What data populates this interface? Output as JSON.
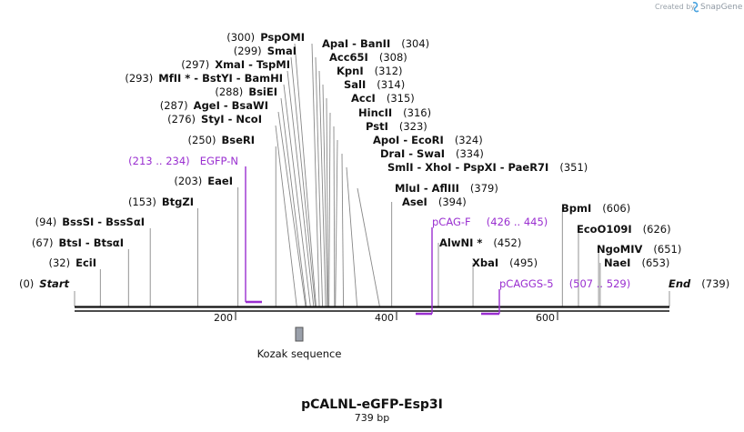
{
  "credit": {
    "prefix": "Created by",
    "brand": "SnapGene"
  },
  "plasmid": {
    "name": "pCALNL-eGFP-Esp3I",
    "length_label": "739 bp"
  },
  "backbone": {
    "length": 739,
    "ticks": [
      "200",
      "400",
      "600"
    ]
  },
  "features": [
    {
      "label": "Kozak sequence",
      "color": "#9aa0aa"
    }
  ],
  "enzymes": [
    {
      "name": "Start",
      "pos": "(0)",
      "site": 0,
      "italic": true
    },
    {
      "name": "EciI",
      "pos": "(32)",
      "site": 32
    },
    {
      "name": "BtsI - BtsαI",
      "pos": "(67)",
      "site": 67
    },
    {
      "name": "BssSI - BssSαI",
      "pos": "(94)",
      "site": 94
    },
    {
      "name": "BtgZI",
      "pos": "(153)",
      "site": 153
    },
    {
      "name": "EaeI",
      "pos": "(203)",
      "site": 203
    },
    {
      "name": "BseRI",
      "pos": "(250)",
      "site": 250
    },
    {
      "name": "StyI - NcoI",
      "pos": "(276)",
      "site": 276
    },
    {
      "name": "AgeI - BsaWI",
      "pos": "(287)",
      "site": 287
    },
    {
      "name": "BsiEI",
      "pos": "(288)",
      "site": 288
    },
    {
      "name": "MfII * - BstYI - BamHI",
      "pos": "(293)",
      "site": 293
    },
    {
      "name": "XmaI - TspMI",
      "pos": "(297)",
      "site": 297
    },
    {
      "name": "SmaI",
      "pos": "(299)",
      "site": 299
    },
    {
      "name": "PspOMI",
      "pos": "(300)",
      "site": 300
    },
    {
      "name": "ApaI - BanII",
      "pos": "(304)",
      "site": 304
    },
    {
      "name": "Acc65I",
      "pos": "(308)",
      "site": 308
    },
    {
      "name": "KpnI",
      "pos": "(312)",
      "site": 312
    },
    {
      "name": "SalI",
      "pos": "(314)",
      "site": 314
    },
    {
      "name": "AccI",
      "pos": "(315)",
      "site": 315
    },
    {
      "name": "HincII",
      "pos": "(316)",
      "site": 316
    },
    {
      "name": "PstI",
      "pos": "(323)",
      "site": 323
    },
    {
      "name": "ApoI - EcoRI",
      "pos": "(324)",
      "site": 324
    },
    {
      "name": "DraI - SwaI",
      "pos": "(334)",
      "site": 334
    },
    {
      "name": "SmlI - XhoI - PspXI - PaeR7I",
      "pos": "(351)",
      "site": 351
    },
    {
      "name": "MluI - AflIII",
      "pos": "(379)",
      "site": 379
    },
    {
      "name": "AseI",
      "pos": "(394)",
      "site": 394
    },
    {
      "name": "AlwNI *",
      "pos": "(452)",
      "site": 452
    },
    {
      "name": "XbaI",
      "pos": "(495)",
      "site": 495
    },
    {
      "name": "BpmI",
      "pos": "(606)",
      "site": 606
    },
    {
      "name": "EcoO109I",
      "pos": "(626)",
      "site": 626
    },
    {
      "name": "NgoMIV",
      "pos": "(651)",
      "site": 651
    },
    {
      "name": "NaeI",
      "pos": "(653)",
      "site": 653
    },
    {
      "name": "End",
      "pos": "(739)",
      "site": 739,
      "italic": true
    }
  ],
  "primers": [
    {
      "name": "EGFP-N",
      "range": "(213 .. 234)",
      "start": 213,
      "end": 234,
      "color": "#9a2fd0"
    },
    {
      "name": "pCAG-F",
      "range": "(426 .. 445)",
      "start": 426,
      "end": 445,
      "color": "#9a2fd0"
    },
    {
      "name": "pCAGGS-5",
      "range": "(507 .. 529)",
      "start": 507,
      "end": 529,
      "color": "#9a2fd0"
    }
  ]
}
